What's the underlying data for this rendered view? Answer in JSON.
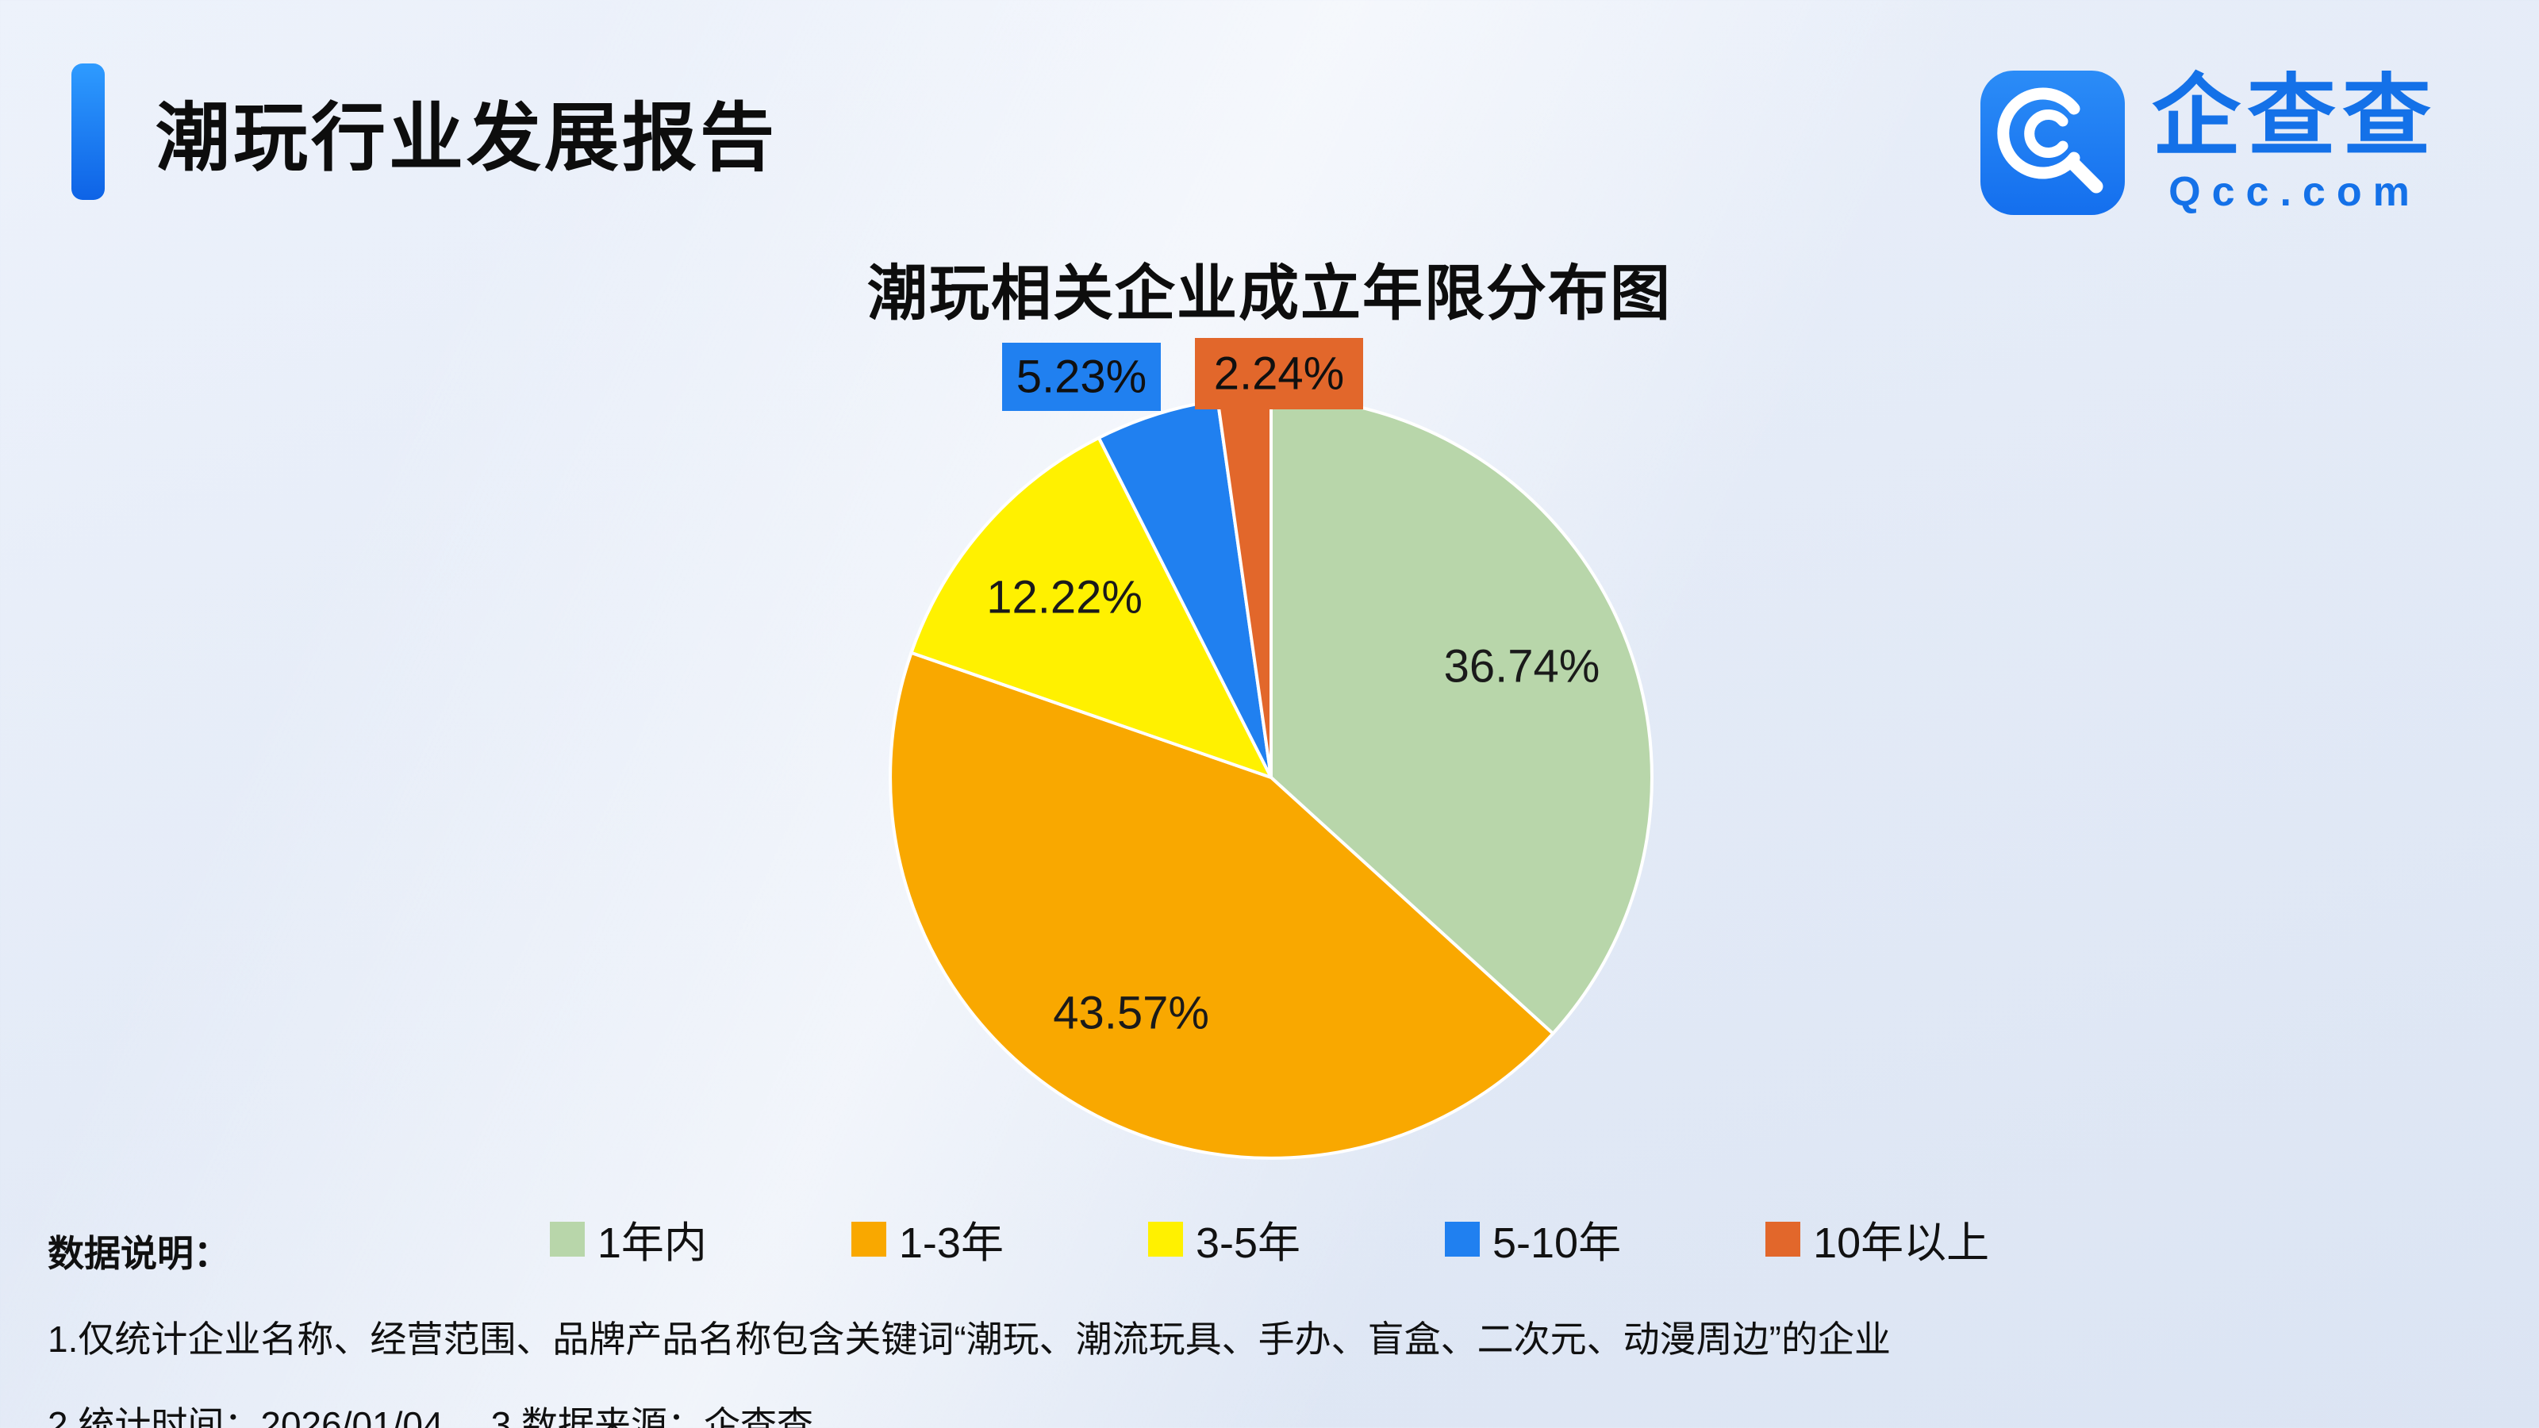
{
  "header": {
    "report_title": "潮玩行业发展报告",
    "brand": {
      "name": "企查查",
      "domain": "Qcc.com",
      "brand_color": "#1471e8"
    }
  },
  "chart_data": {
    "type": "pie",
    "title": "潮玩相关企业成立年限分布图",
    "unit": "%",
    "direction": "clockwise",
    "start_angle": "top",
    "legend_position": "bottom",
    "slices": [
      {
        "label": "1年内",
        "value": 36.74,
        "display": "36.74%",
        "color": "#b8d6aa",
        "label_style": "inside"
      },
      {
        "label": "1-3年",
        "value": 43.57,
        "display": "43.57%",
        "color": "#f9a800",
        "label_style": "inside"
      },
      {
        "label": "3-5年",
        "value": 12.22,
        "display": "12.22%",
        "color": "#fff100",
        "label_style": "inside"
      },
      {
        "label": "5-10年",
        "value": 5.23,
        "display": "5.23%",
        "color": "#2080f0",
        "label_style": "callout"
      },
      {
        "label": "10年以上",
        "value": 2.24,
        "display": "2.24%",
        "color": "#e2672b",
        "label_style": "callout"
      }
    ]
  },
  "footnotes": {
    "heading": "数据说明：",
    "line1": "1.仅统计企业名称、经营范围、品牌产品名称包含关键词“潮玩、潮流玩具、手办、盲盒、二次元、动漫周边”的企业",
    "line2_time": "2.统计时间：2026/01/04",
    "line2_source": "3.数据来源：企查查"
  }
}
